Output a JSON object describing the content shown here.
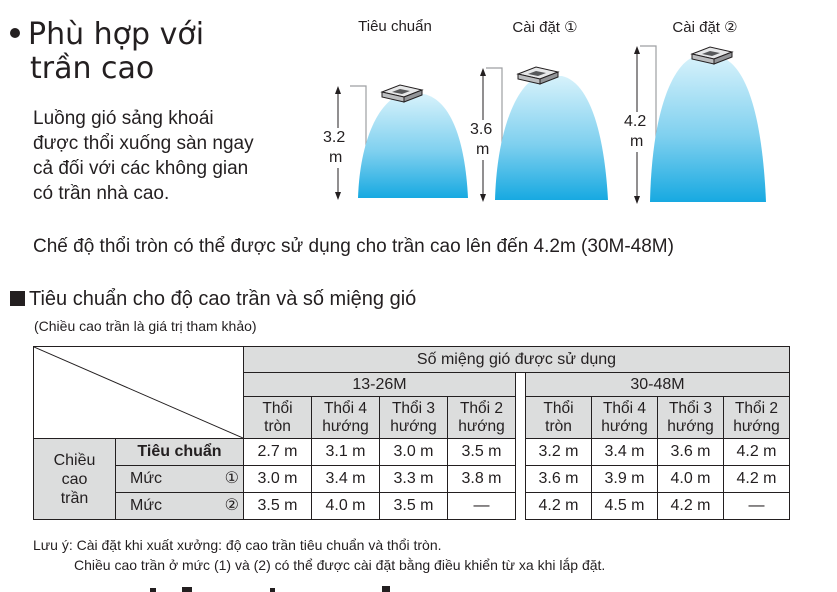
{
  "heading": {
    "line1": "Phù hợp với",
    "line2": "trần cao"
  },
  "description": {
    "line1": "Luồng gió sảng khoái",
    "line2": "được thổi xuống sàn ngay",
    "line3": "cả đối với các không gian",
    "line4": "có trần nhà cao."
  },
  "diagram": {
    "units": [
      {
        "caption": "Tiêu chuẩn",
        "height_value": "3.2",
        "height_unit": "m"
      },
      {
        "caption": "Cài đặt ①",
        "height_value": "3.6",
        "height_unit": "m"
      },
      {
        "caption": "Cài đặt ②",
        "height_value": "4.2",
        "height_unit": "m"
      }
    ],
    "colors": {
      "airflow_top": "#d7f2fb",
      "airflow_bottom": "#17a9e1",
      "frame": "#9d9fa2"
    }
  },
  "main_statement": "Chế độ thổi tròn có thể được sử dụng cho trần cao lên đến 4.2m (30M-48M)",
  "table_heading": "Tiêu chuẩn cho độ cao trần và số miệng gió",
  "table_subnote": "(Chiều cao trần là giá trị tham khảo)",
  "table": {
    "top_header": "Số miệng gió được sử dụng",
    "groups": [
      "13-26M",
      "30-48M"
    ],
    "columns": [
      {
        "l1": "Thổi",
        "l2": "tròn"
      },
      {
        "l1": "Thổi 4",
        "l2": "hướng"
      },
      {
        "l1": "Thổi 3",
        "l2": "hướng"
      },
      {
        "l1": "Thổi 2",
        "l2": "hướng"
      }
    ],
    "side_label": {
      "l1": "Chiều",
      "l2": "cao",
      "l3": "trần"
    },
    "rows": [
      {
        "label": "Tiêu chuẩn",
        "g1": [
          "2.7 m",
          "3.1 m",
          "3.0 m",
          "3.5 m"
        ],
        "g2": [
          "3.2 m",
          "3.4 m",
          "3.6 m",
          "4.2 m"
        ]
      },
      {
        "label": "Mức",
        "mark": "①",
        "g1": [
          "3.0 m",
          "3.4 m",
          "3.3 m",
          "3.8 m"
        ],
        "g2": [
          "3.6 m",
          "3.9 m",
          "4.0 m",
          "4.2 m"
        ]
      },
      {
        "label": "Mức",
        "mark": "②",
        "g1": [
          "3.5 m",
          "4.0 m",
          "3.5 m",
          "—"
        ],
        "g2": [
          "4.2 m",
          "4.5 m",
          "4.2 m",
          "—"
        ]
      }
    ],
    "colors": {
      "header_bg": "#dcdddd"
    }
  },
  "notes": {
    "line1": "Lưu ý: Cài đặt khi xuất xưởng: độ cao trần tiêu chuẩn và thổi tròn.",
    "line2": "Chiều cao trần ở mức (1) và (2) có thể được cài đặt bằng điều khiển từ xa khi lắp đặt."
  }
}
